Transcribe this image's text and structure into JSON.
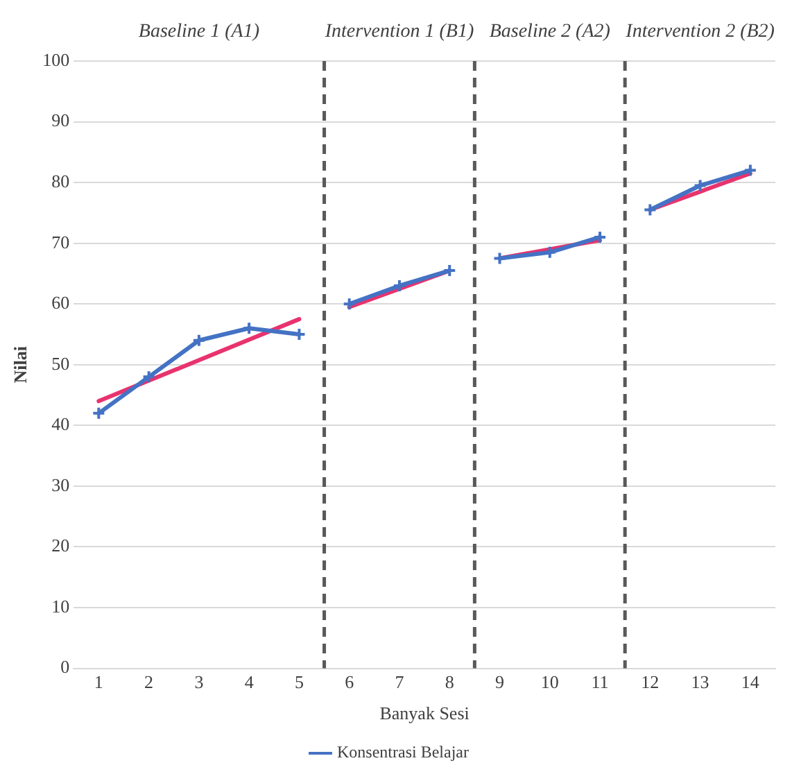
{
  "chart_data": {
    "type": "line",
    "xlabel": "Banyak Sesi",
    "ylabel": "Nilai",
    "xlim": [
      0.5,
      14.5
    ],
    "xticks": [
      1,
      2,
      3,
      4,
      5,
      6,
      7,
      8,
      9,
      10,
      11,
      12,
      13,
      14
    ],
    "ylim": [
      0,
      100
    ],
    "yticks": [
      0,
      10,
      20,
      30,
      40,
      50,
      60,
      70,
      80,
      90,
      100
    ],
    "grid": "y",
    "legend": "bottom",
    "marker": "cross",
    "line_style": "solid",
    "series": [
      {
        "name": "Konsentrasi Belajar",
        "color": "#4472c4",
        "x": [
          1,
          2,
          3,
          4,
          5,
          5.5,
          6,
          7,
          8,
          8.5,
          9,
          10,
          11,
          11.5,
          12,
          13,
          14
        ],
        "values": [
          42,
          48,
          54,
          56,
          55,
          null,
          60,
          63,
          65.5,
          null,
          67.5,
          68.5,
          71,
          null,
          75.5,
          79.5,
          82
        ]
      },
      {
        "color": "#e8336e",
        "marker": "none",
        "x": [
          1,
          5
        ],
        "values": [
          44,
          57.5
        ]
      },
      {
        "color": "#e8336e",
        "marker": "none",
        "x": [
          6,
          8
        ],
        "values": [
          59.5,
          65.5
        ]
      },
      {
        "color": "#e8336e",
        "marker": "none",
        "x": [
          9,
          11
        ],
        "values": [
          67.5,
          70.5
        ]
      },
      {
        "color": "#e8336e",
        "marker": "none",
        "x": [
          12,
          14
        ],
        "values": [
          75.5,
          81.5
        ]
      }
    ],
    "ref_lines": [
      {
        "axis": "x",
        "value": 5.5,
        "color": "#595959",
        "line_style": "dashed"
      },
      {
        "axis": "x",
        "value": 8.5,
        "color": "#595959",
        "line_style": "dashed"
      },
      {
        "axis": "x",
        "value": 11.5,
        "color": "#595959",
        "line_style": "dashed"
      }
    ],
    "annotations": [
      "Baseline 1 (A1)",
      "Intervention 1 (B1)",
      "Baseline 2 (A2)",
      "Intervention 2 (B2)"
    ]
  }
}
